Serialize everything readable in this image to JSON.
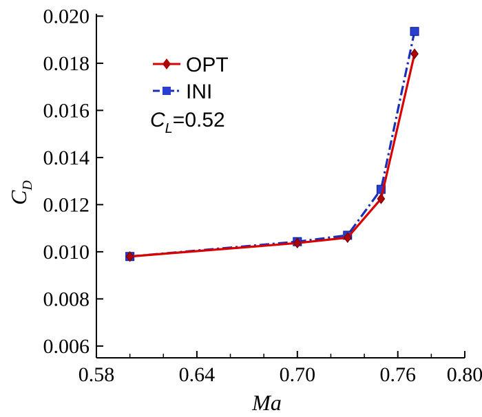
{
  "chart_data": {
    "type": "line",
    "xlabel": "Ma",
    "ylabel": {
      "main": "C",
      "sub": "D"
    },
    "xlim": [
      0.58,
      0.8
    ],
    "ylim": [
      0.0055,
      0.0201
    ],
    "xticks": [
      0.58,
      0.64,
      0.7,
      0.76,
      0.8
    ],
    "xtick_labels": [
      "0.58",
      "0.64",
      "0.70",
      "0.76",
      "0.80"
    ],
    "yticks": [
      0.006,
      0.008,
      0.01,
      0.012,
      0.014,
      0.016,
      0.018,
      0.02
    ],
    "ytick_labels": [
      "0.006",
      "0.008",
      "0.010",
      "0.012",
      "0.014",
      "0.016",
      "0.018",
      "0.020"
    ],
    "grid": false,
    "legend_position": "top-left",
    "annotation": {
      "main": "C",
      "sub": "L",
      "rest": "=0.52"
    },
    "series": [
      {
        "name": "OPT",
        "color": "#d90000",
        "marker": "diamond",
        "line_style": "solid",
        "x": [
          0.6,
          0.7,
          0.73,
          0.75,
          0.77
        ],
        "y": [
          0.0098,
          0.01037,
          0.0106,
          0.01225,
          0.0184
        ]
      },
      {
        "name": "INI",
        "color": "#1a2eb8",
        "marker": "square",
        "line_style": "dashdot",
        "x": [
          0.6,
          0.7,
          0.73,
          0.75,
          0.77
        ],
        "y": [
          0.0098,
          0.01043,
          0.0107,
          0.01265,
          0.01935
        ]
      }
    ]
  }
}
